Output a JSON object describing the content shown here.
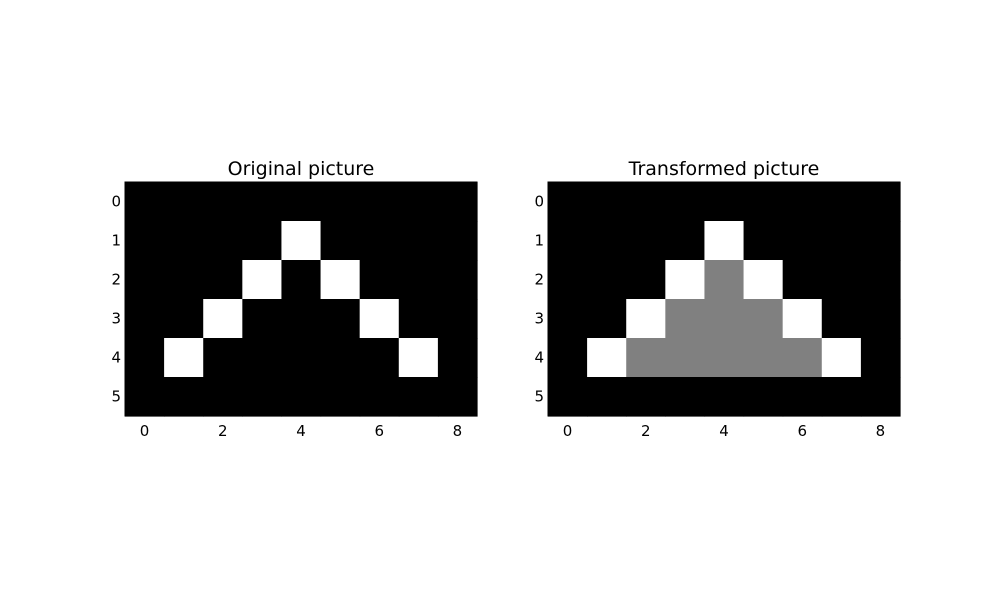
{
  "chart_data": [
    {
      "type": "heatmap",
      "title": "Original picture",
      "xlabel": "",
      "ylabel": "",
      "xlim": [
        -0.5,
        8.5
      ],
      "ylim": [
        5.5,
        -0.5
      ],
      "x_ticks": [
        0,
        2,
        4,
        6,
        8
      ],
      "y_ticks": [
        0,
        1,
        2,
        3,
        4,
        5
      ],
      "colormap": {
        "0": "#000000",
        "1": "#808080",
        "2": "#ffffff"
      },
      "grid": [
        [
          0,
          0,
          0,
          0,
          0,
          0,
          0,
          0,
          0
        ],
        [
          0,
          0,
          0,
          0,
          2,
          0,
          0,
          0,
          0
        ],
        [
          0,
          0,
          0,
          2,
          0,
          2,
          0,
          0,
          0
        ],
        [
          0,
          0,
          2,
          0,
          0,
          0,
          2,
          0,
          0
        ],
        [
          0,
          2,
          0,
          0,
          0,
          0,
          0,
          2,
          0
        ],
        [
          0,
          0,
          0,
          0,
          0,
          0,
          0,
          0,
          0
        ]
      ]
    },
    {
      "type": "heatmap",
      "title": "Transformed picture",
      "xlabel": "",
      "ylabel": "",
      "xlim": [
        -0.5,
        8.5
      ],
      "ylim": [
        5.5,
        -0.5
      ],
      "x_ticks": [
        0,
        2,
        4,
        6,
        8
      ],
      "y_ticks": [
        0,
        1,
        2,
        3,
        4,
        5
      ],
      "colormap": {
        "0": "#000000",
        "1": "#808080",
        "2": "#ffffff"
      },
      "grid": [
        [
          0,
          0,
          0,
          0,
          0,
          0,
          0,
          0,
          0
        ],
        [
          0,
          0,
          0,
          0,
          2,
          0,
          0,
          0,
          0
        ],
        [
          0,
          0,
          0,
          2,
          1,
          2,
          0,
          0,
          0
        ],
        [
          0,
          0,
          2,
          1,
          1,
          1,
          2,
          0,
          0
        ],
        [
          0,
          2,
          1,
          1,
          1,
          1,
          1,
          2,
          0
        ],
        [
          0,
          0,
          0,
          0,
          0,
          0,
          0,
          0,
          0
        ]
      ]
    }
  ]
}
